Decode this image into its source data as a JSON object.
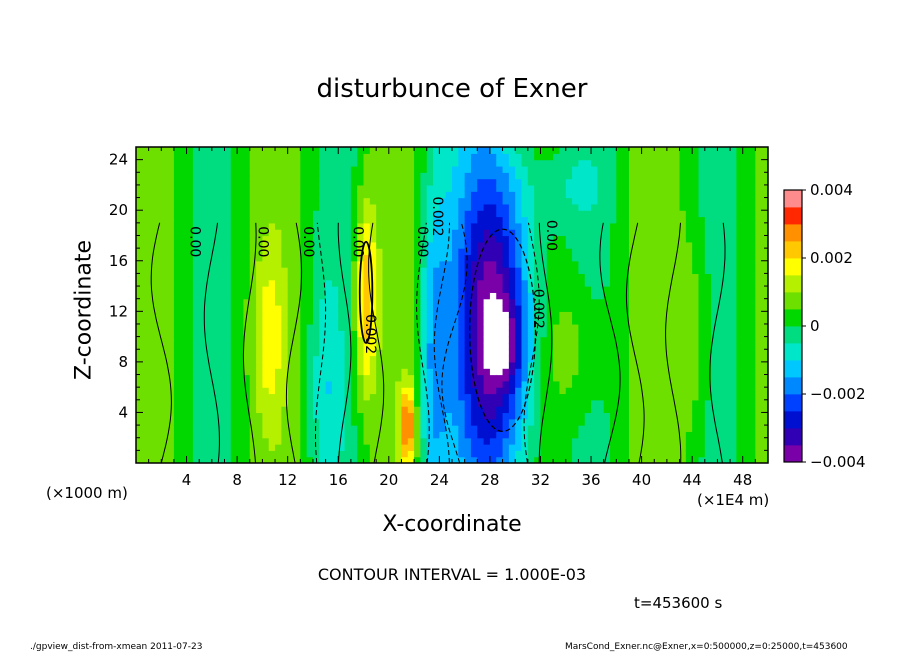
{
  "chart_data": {
    "type": "heatmap",
    "title": "disturbunce of Exner",
    "xlabel": "X-coordinate",
    "ylabel": "Z-coordinate",
    "x_unit_note": "(×1000 m)",
    "x_scale_note": "(×1E4 m)",
    "xlim": [
      0,
      50
    ],
    "ylim": [
      0,
      25
    ],
    "x_ticks": [
      4,
      8,
      12,
      16,
      20,
      24,
      28,
      32,
      36,
      40,
      44,
      48
    ],
    "y_ticks": [
      4,
      8,
      12,
      16,
      20,
      24
    ],
    "value_range": [
      -0.004,
      0.004
    ],
    "colorbar_labels": [
      "0.004",
      "0.002",
      "0",
      "−0.002",
      "−0.004"
    ],
    "colorbar_values": [
      0.004,
      0.002,
      0,
      -0.002,
      -0.004
    ],
    "contour_interval_text": "CONTOUR INTERVAL = 1.000E-03",
    "contour_labels": [
      {
        "text": "0.00",
        "x": 4.3,
        "z": 17.5
      },
      {
        "text": "0.00",
        "x": 9.7,
        "z": 17.5
      },
      {
        "text": "0.00",
        "x": 13.3,
        "z": 17.5
      },
      {
        "text": "0.00",
        "x": 17.2,
        "z": 17.5
      },
      {
        "text": "0.00",
        "x": 22.3,
        "z": 17.5
      },
      {
        "text": "0.002",
        "x": 23.5,
        "z": 19.5
      },
      {
        "text": "0.002",
        "x": 18.2,
        "z": 10.2
      },
      {
        "text": "0.002",
        "x": 31.5,
        "z": 12.2
      },
      {
        "text": "0.00",
        "x": 32.5,
        "z": 18.0
      }
    ],
    "time_text": "t=453600 s"
  },
  "footer": {
    "left": "./gpview_dist-from-xmean  2011-07-23",
    "right": "MarsCond_Exner.nc@Exner,x=0:500000,z=0:25000,t=453600"
  }
}
